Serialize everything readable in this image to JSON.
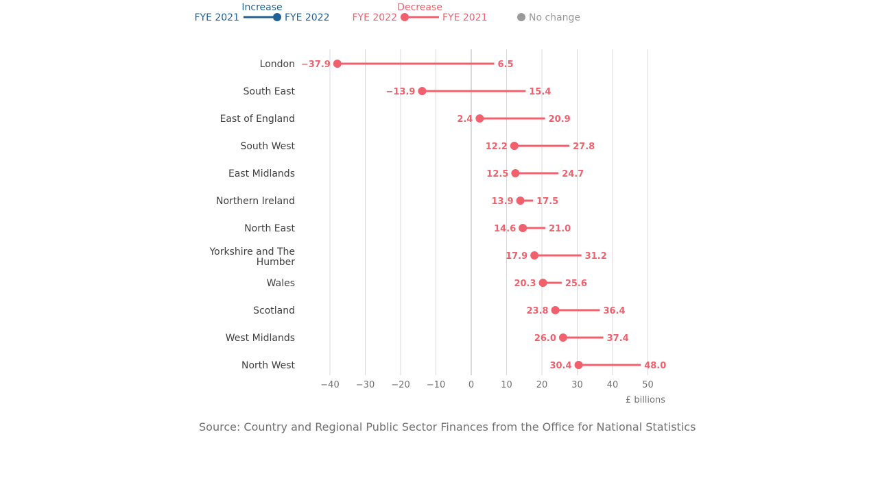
{
  "colors": {
    "increase": "#206095",
    "decrease": "#f0616d",
    "no_change": "#999999",
    "grid": "#d9d9d9",
    "zero_line": "#b3b3b3"
  },
  "legend": {
    "increase": {
      "title": "Increase",
      "from": "FYE 2021",
      "to": "FYE 2022"
    },
    "decrease": {
      "title": "Decrease",
      "from": "FYE 2022",
      "to": "FYE 2021"
    },
    "no_change": {
      "label": "No change"
    }
  },
  "source": "Source: Country and Regional Public Sector Finances from the Office for National Statistics",
  "chart_data": {
    "type": "dumbbell",
    "title": "",
    "xlabel": "£ billions",
    "xlim": [
      -45,
      55
    ],
    "xticks": [
      -40,
      -30,
      -20,
      -10,
      0,
      10,
      20,
      30,
      40,
      50
    ],
    "xtick_labels": [
      "−40",
      "−30",
      "−20",
      "−10",
      "0",
      "10",
      "20",
      "30",
      "40",
      "50"
    ],
    "grid": true,
    "legend_position": "top-left",
    "series_names": [
      "FYE 2021",
      "FYE 2022"
    ],
    "rows": [
      {
        "category": "London",
        "fye2021": 6.5,
        "fye2022": -37.9,
        "label2021": "6.5",
        "label2022": "−37.9"
      },
      {
        "category": "South East",
        "fye2021": 15.4,
        "fye2022": -13.9,
        "label2021": "15.4",
        "label2022": "−13.9"
      },
      {
        "category": "East of England",
        "fye2021": 20.9,
        "fye2022": 2.4,
        "label2021": "20.9",
        "label2022": "2.4"
      },
      {
        "category": "South West",
        "fye2021": 27.8,
        "fye2022": 12.2,
        "label2021": "27.8",
        "label2022": "12.2"
      },
      {
        "category": "East Midlands",
        "fye2021": 24.7,
        "fye2022": 12.5,
        "label2021": "24.7",
        "label2022": "12.5"
      },
      {
        "category": "Northern Ireland",
        "fye2021": 17.5,
        "fye2022": 13.9,
        "label2021": "17.5",
        "label2022": "13.9"
      },
      {
        "category": "North East",
        "fye2021": 21.0,
        "fye2022": 14.6,
        "label2021": "21.0",
        "label2022": "14.6"
      },
      {
        "category": "Yorkshire and The Humber",
        "category_lines": [
          "Yorkshire and The",
          "Humber"
        ],
        "fye2021": 31.2,
        "fye2022": 17.9,
        "label2021": "31.2",
        "label2022": "17.9"
      },
      {
        "category": "Wales",
        "fye2021": 25.6,
        "fye2022": 20.3,
        "label2021": "25.6",
        "label2022": "20.3"
      },
      {
        "category": "Scotland",
        "fye2021": 36.4,
        "fye2022": 23.8,
        "label2021": "36.4",
        "label2022": "23.8"
      },
      {
        "category": "West Midlands",
        "fye2021": 37.4,
        "fye2022": 26.0,
        "label2021": "37.4",
        "label2022": "26.0"
      },
      {
        "category": "North West",
        "fye2021": 48.0,
        "fye2022": 30.4,
        "label2021": "48.0",
        "label2022": "30.4"
      }
    ]
  }
}
